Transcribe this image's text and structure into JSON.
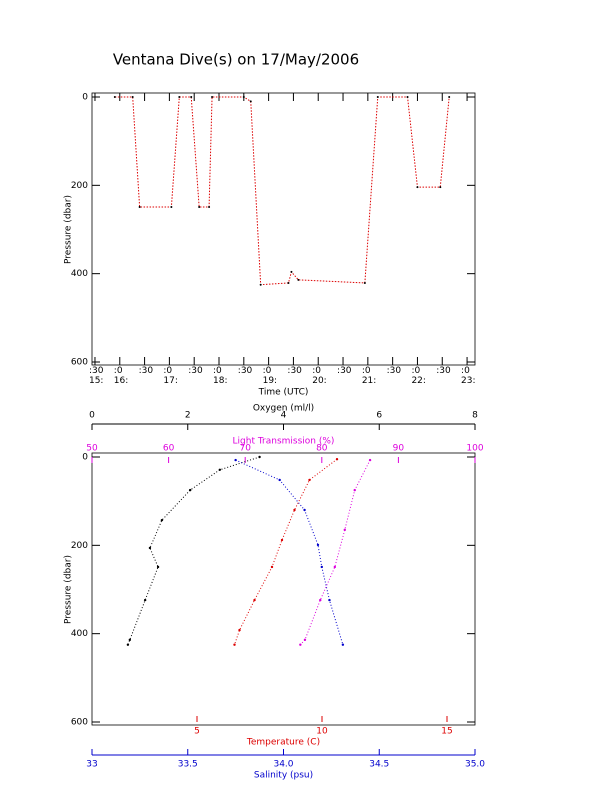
{
  "chart_data": [
    {
      "type": "line",
      "title": "Ventana Dive(s) on 17/May/2006",
      "x_label": "Time (UTC)",
      "y_label": "Pressure (dbar)",
      "xlim": [
        15.44,
        23.16
      ],
      "ylim": [
        0,
        600
      ],
      "yticks": [
        0,
        200,
        400,
        600
      ],
      "xticks": [
        {
          "value": 15.5,
          "label": ":30\n15:"
        },
        {
          "value": 16,
          "label": ":0\n16:"
        },
        {
          "value": 16.5,
          "label": ":30"
        },
        {
          "value": 17,
          "label": ":0\n17:"
        },
        {
          "value": 17.5,
          "label": ":30"
        },
        {
          "value": 18,
          "label": ":0\n18:"
        },
        {
          "value": 18.5,
          "label": ":30"
        },
        {
          "value": 19,
          "label": ":0\n19:"
        },
        {
          "value": 19.5,
          "label": ":30"
        },
        {
          "value": 20,
          "label": ":0\n20:"
        },
        {
          "value": 20.5,
          "label": ":30"
        },
        {
          "value": 21,
          "label": ":0\n21:"
        },
        {
          "value": 21.5,
          "label": ":30"
        },
        {
          "value": 22,
          "label": ":0\n22:"
        },
        {
          "value": 22.5,
          "label": ":30"
        },
        {
          "value": 23,
          "label": ":0\n23:"
        }
      ],
      "series": [
        {
          "color": "#dd0000",
          "x": [
            15.9,
            16.26,
            16.4,
            17.04,
            17.2,
            17.44,
            17.6,
            17.8,
            17.86,
            18.5,
            18.64,
            18.84,
            19.4,
            19.46,
            19.6,
            20.94,
            21.2,
            21.8,
            22.0,
            22.46,
            22.64
          ],
          "values": [
            0,
            0,
            249,
            249,
            0,
            0,
            249,
            249,
            0,
            0,
            10,
            425,
            421,
            396,
            414,
            421,
            0,
            0,
            204,
            204,
            0
          ]
        }
      ]
    },
    {
      "type": "profile",
      "y_label": "Pressure (dbar)",
      "ylim": [
        0,
        600
      ],
      "yticks": [
        0,
        200,
        400,
        600
      ],
      "x_axes": [
        {
          "label": "Oxygen (ml/l)",
          "color": "#000000",
          "lim": [
            0,
            8
          ],
          "ticks": [
            0,
            2,
            4,
            6,
            8
          ]
        },
        {
          "label": "Light Transmission (%)",
          "color": "#dd00dd",
          "lim": [
            50,
            100
          ],
          "ticks": [
            50,
            60,
            70,
            80,
            90,
            100
          ]
        },
        {
          "label": "Temperature (C)",
          "color": "#dd0000",
          "lim": [
            0.8,
            16.12
          ],
          "ticks": [
            5,
            10,
            15
          ]
        },
        {
          "label": "Salinity (psu)",
          "color": "#0000cc",
          "lim": [
            33,
            35
          ],
          "ticks": [
            33.0,
            {
              "value": 33.5,
              "label": "33.5"
            },
            {
              "value": 34,
              "label": "34.0"
            },
            {
              "value": 34.5,
              "label": "34.5"
            },
            {
              "value": 35,
              "label": "35.0"
            }
          ]
        }
      ],
      "series": [
        {
          "axis": 0,
          "color": "#000000",
          "x": [
            3.5,
            2.67,
            2.05,
            1.46,
            1.21,
            1.38,
            1.11,
            0.79,
            0.75
          ],
          "values": [
            0,
            29,
            75,
            143,
            206,
            249,
            324,
            414,
            425
          ]
        },
        {
          "axis": 1,
          "color": "#dd00dd",
          "x": [
            86.3,
            84.3,
            83.0,
            81.7,
            79.8,
            77.8,
            77.2
          ],
          "values": [
            7,
            75,
            165,
            249,
            324,
            414,
            425
          ]
        },
        {
          "axis": 2,
          "color": "#dd0000",
          "x": [
            10.6,
            9.5,
            8.9,
            8.4,
            8.0,
            7.3,
            6.7,
            6.5
          ],
          "values": [
            5,
            52,
            120,
            188,
            249,
            324,
            392,
            425
          ]
        },
        {
          "axis": 3,
          "color": "#0000cc",
          "x": [
            33.75,
            33.98,
            34.11,
            34.18,
            34.2,
            34.24,
            34.31
          ],
          "values": [
            7,
            52,
            120,
            199,
            249,
            324,
            425
          ]
        }
      ]
    }
  ]
}
